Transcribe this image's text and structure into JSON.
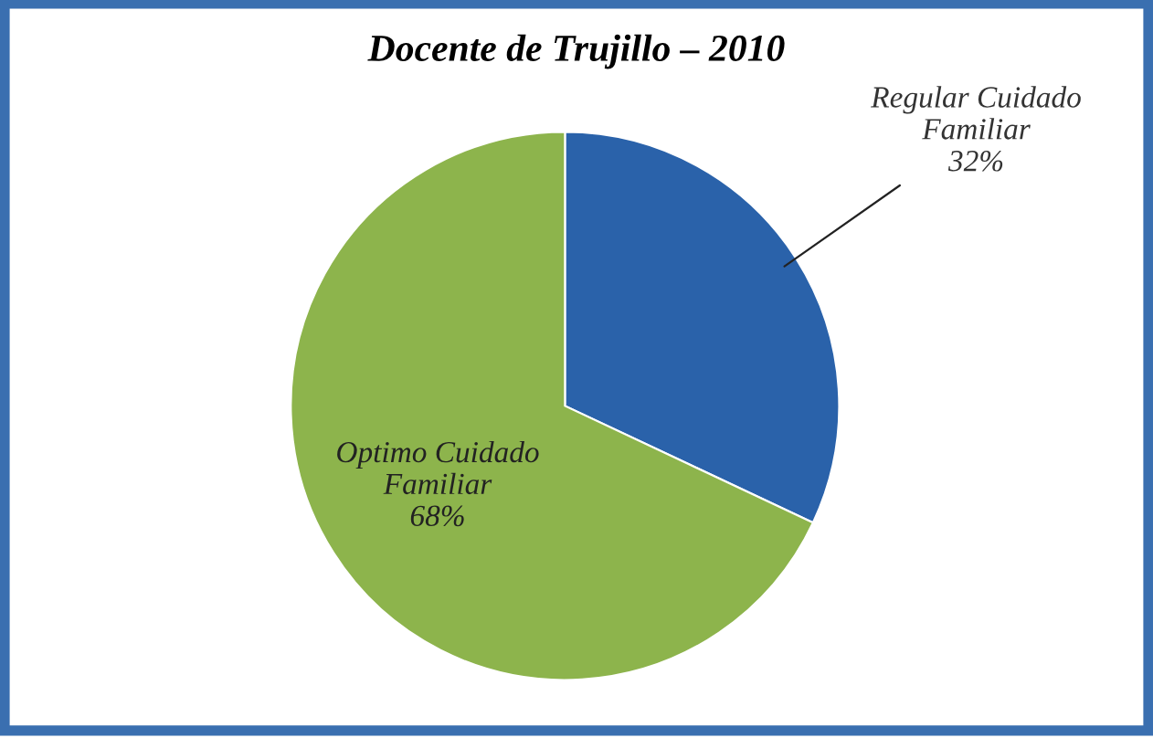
{
  "chart_data": {
    "type": "pie",
    "title": "Docente de Trujillo – 2010",
    "categories": [
      "Regular Cuidado Familiar",
      "Optimo Cuidado Familiar"
    ],
    "values": [
      32,
      68
    ],
    "colors": [
      "#2a62aa",
      "#8db44c"
    ],
    "value_labels": [
      "32%",
      "68%"
    ]
  }
}
